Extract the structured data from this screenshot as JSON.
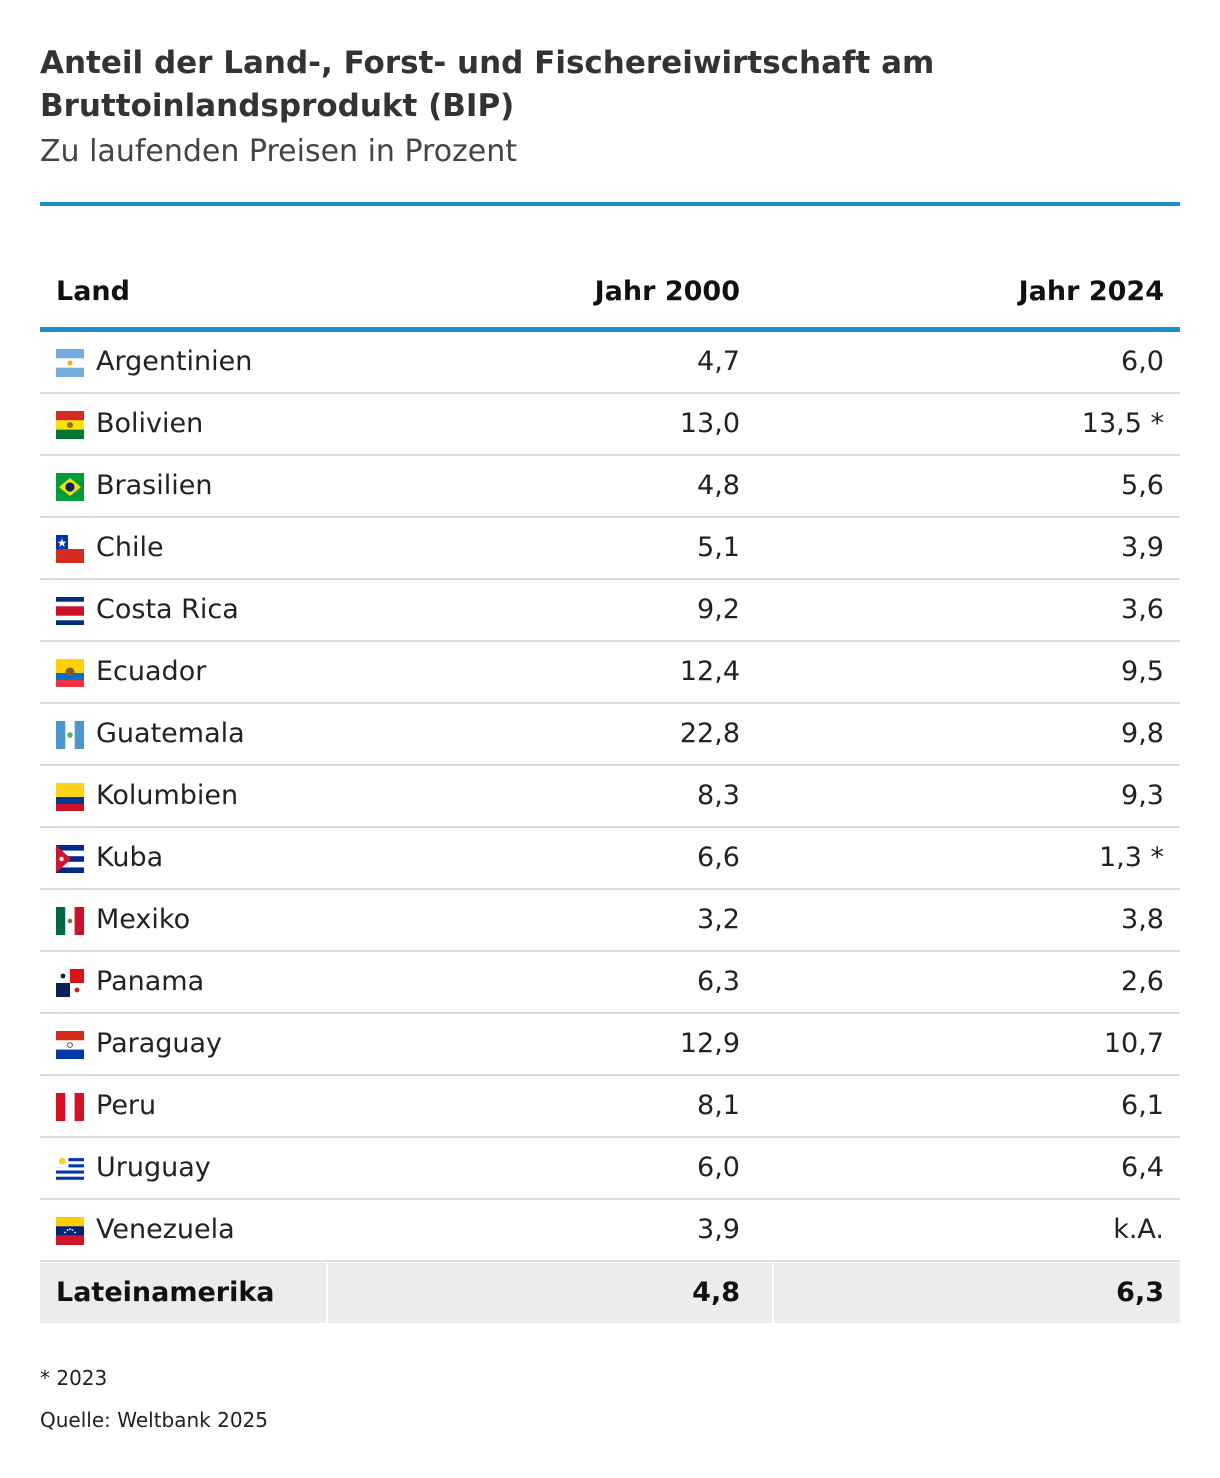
{
  "title": "Anteil der Land-, Forst- und Fischereiwirtschaft am Bruttoinlandsprodukt (BIP)",
  "subtitle": "Zu laufenden Preisen in Prozent",
  "colors": {
    "accent": "#1a8fd0",
    "total_row_bg": "#ececec",
    "divider": "#dddddd"
  },
  "chart_data": {
    "type": "table",
    "columns": [
      "Land",
      "Jahr 2000",
      "Jahr 2024"
    ],
    "rows": [
      {
        "country": "Argentinien",
        "flag": "flag-argentina-icon",
        "y2000": "4,7",
        "y2024": "6,0"
      },
      {
        "country": "Bolivien",
        "flag": "flag-bolivia-icon",
        "y2000": "13,0",
        "y2024": "13,5 *"
      },
      {
        "country": "Brasilien",
        "flag": "flag-brazil-icon",
        "y2000": "4,8",
        "y2024": "5,6"
      },
      {
        "country": "Chile",
        "flag": "flag-chile-icon",
        "y2000": "5,1",
        "y2024": "3,9"
      },
      {
        "country": "Costa Rica",
        "flag": "flag-costa-rica-icon",
        "y2000": "9,2",
        "y2024": "3,6"
      },
      {
        "country": "Ecuador",
        "flag": "flag-ecuador-icon",
        "y2000": "12,4",
        "y2024": "9,5"
      },
      {
        "country": "Guatemala",
        "flag": "flag-guatemala-icon",
        "y2000": "22,8",
        "y2024": "9,8"
      },
      {
        "country": "Kolumbien",
        "flag": "flag-colombia-icon",
        "y2000": "8,3",
        "y2024": "9,3"
      },
      {
        "country": "Kuba",
        "flag": "flag-cuba-icon",
        "y2000": "6,6",
        "y2024": "1,3 *"
      },
      {
        "country": "Mexiko",
        "flag": "flag-mexico-icon",
        "y2000": "3,2",
        "y2024": "3,8"
      },
      {
        "country": "Panama",
        "flag": "flag-panama-icon",
        "y2000": "6,3",
        "y2024": "2,6"
      },
      {
        "country": "Paraguay",
        "flag": "flag-paraguay-icon",
        "y2000": "12,9",
        "y2024": "10,7"
      },
      {
        "country": "Peru",
        "flag": "flag-peru-icon",
        "y2000": "8,1",
        "y2024": "6,1"
      },
      {
        "country": "Uruguay",
        "flag": "flag-uruguay-icon",
        "y2000": "6,0",
        "y2024": "6,4"
      },
      {
        "country": "Venezuela",
        "flag": "flag-venezuela-icon",
        "y2000": "3,9",
        "y2024": "k.A."
      }
    ],
    "total": {
      "label": "Lateinamerika",
      "y2000": "4,8",
      "y2024": "6,3"
    }
  },
  "footnote": "* 2023",
  "source": "Quelle: Weltbank 2025"
}
